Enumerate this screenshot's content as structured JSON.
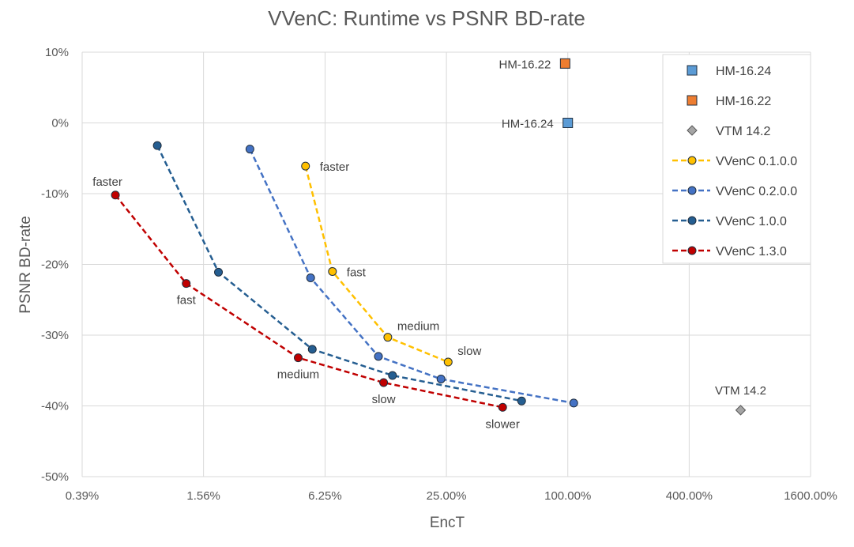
{
  "chart_data": {
    "type": "scatter",
    "title": "VVenC: Runtime vs PSNR BD-rate",
    "xlabel": "EncT",
    "ylabel": "PSNR BD-rate",
    "xscale": "log2",
    "xlim": [
      0.0039,
      16.0
    ],
    "ylim": [
      -0.5,
      0.1
    ],
    "x_ticks": [
      {
        "value": 0.0039,
        "label": "0.39%"
      },
      {
        "value": 0.0156,
        "label": "1.56%"
      },
      {
        "value": 0.0625,
        "label": "6.25%"
      },
      {
        "value": 0.25,
        "label": "25.00%"
      },
      {
        "value": 1.0,
        "label": "100.00%"
      },
      {
        "value": 4.0,
        "label": "400.00%"
      },
      {
        "value": 16.0,
        "label": "1600.00%"
      }
    ],
    "y_ticks": [
      {
        "value": 0.1,
        "label": "10%"
      },
      {
        "value": 0.0,
        "label": "0%"
      },
      {
        "value": -0.1,
        "label": "-10%"
      },
      {
        "value": -0.2,
        "label": "-20%"
      },
      {
        "value": -0.3,
        "label": "-30%"
      },
      {
        "value": -0.4,
        "label": "-40%"
      },
      {
        "value": -0.5,
        "label": "-50%"
      }
    ],
    "grid": true,
    "legend_position": "top-right",
    "series": [
      {
        "name": "HM-16.24",
        "marker": "square",
        "color": "#5b9bd5",
        "line": false,
        "points": [
          {
            "x": 1.0,
            "y": 0.0
          }
        ],
        "labels": [
          {
            "text": "HM-16.24",
            "side": "left"
          }
        ]
      },
      {
        "name": "HM-16.22",
        "marker": "square",
        "color": "#ed7d31",
        "line": false,
        "points": [
          {
            "x": 0.97,
            "y": 0.084
          }
        ],
        "labels": [
          {
            "text": "HM-16.22",
            "side": "left"
          }
        ]
      },
      {
        "name": "VTM 14.2",
        "marker": "diamond",
        "color": "#a5a5a5",
        "line": false,
        "points": [
          {
            "x": 7.2,
            "y": -0.406
          }
        ],
        "labels": [
          {
            "text": "VTM 14.2",
            "side": "above"
          }
        ]
      },
      {
        "name": "VVenC 0.1.0.0",
        "marker": "circle",
        "color": "#ffc000",
        "line": true,
        "points": [
          {
            "x": 0.05,
            "y": -0.061
          },
          {
            "x": 0.068,
            "y": -0.21
          },
          {
            "x": 0.128,
            "y": -0.303
          },
          {
            "x": 0.255,
            "y": -0.338
          }
        ],
        "labels": [
          {
            "text": "faster",
            "side": "right"
          },
          {
            "text": "fast",
            "side": "right"
          },
          {
            "text": "medium",
            "side": "above-right"
          },
          {
            "text": "slow",
            "side": "above-right"
          }
        ]
      },
      {
        "name": "VVenC 0.2.0.0",
        "marker": "circle",
        "color": "#4472c4",
        "line": true,
        "points": [
          {
            "x": 0.0265,
            "y": -0.037
          },
          {
            "x": 0.053,
            "y": -0.219
          },
          {
            "x": 0.115,
            "y": -0.33
          },
          {
            "x": 0.235,
            "y": -0.362
          },
          {
            "x": 1.07,
            "y": -0.396
          }
        ],
        "labels": []
      },
      {
        "name": "VVenC 1.0.0",
        "marker": "circle",
        "color": "#255e91",
        "line": true,
        "points": [
          {
            "x": 0.0092,
            "y": -0.032
          },
          {
            "x": 0.0185,
            "y": -0.211
          },
          {
            "x": 0.054,
            "y": -0.32
          },
          {
            "x": 0.135,
            "y": -0.357
          },
          {
            "x": 0.59,
            "y": -0.393
          }
        ],
        "labels": []
      },
      {
        "name": "VVenC 1.3.0",
        "marker": "circle",
        "color": "#c00000",
        "line": true,
        "points": [
          {
            "x": 0.0057,
            "y": -0.102
          },
          {
            "x": 0.0128,
            "y": -0.227
          },
          {
            "x": 0.046,
            "y": -0.332
          },
          {
            "x": 0.122,
            "y": -0.367
          },
          {
            "x": 0.475,
            "y": -0.402
          }
        ],
        "labels": [
          {
            "text": "faster",
            "side": "above-left"
          },
          {
            "text": "fast",
            "side": "below"
          },
          {
            "text": "medium",
            "side": "below"
          },
          {
            "text": "slow",
            "side": "below"
          },
          {
            "text": "slower",
            "side": "below"
          }
        ]
      }
    ]
  }
}
